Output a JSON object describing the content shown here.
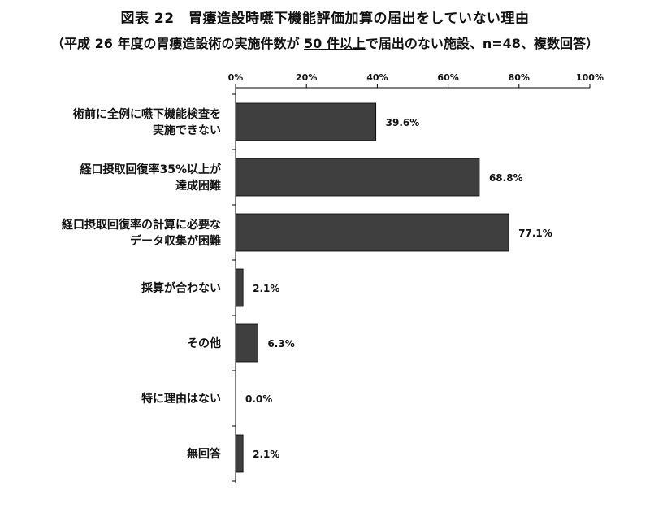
{
  "title": "図表 22　胃瘻造設時嚥下機能評価加算の届出をしていない理由",
  "subtitle": {
    "prefix": "（平成 26 年度の胃瘻造設術の実施件数が ",
    "underlined": "50 件以上",
    "suffix": "で届出のない施設、n=48、複数回答）"
  },
  "colors": {
    "bar": "#3f3f3f",
    "axis": "#000000",
    "text": "#111111"
  },
  "chart_data": {
    "type": "bar",
    "orientation": "horizontal",
    "xlim": [
      0,
      100
    ],
    "x_tick_labels": [
      "0%",
      "20%",
      "40%",
      "60%",
      "80%",
      "100%"
    ],
    "x_ticks": [
      0,
      20,
      40,
      60,
      80,
      100
    ],
    "grid": false,
    "categories": [
      [
        "術前に全例に嚥下機能検査を",
        "実施できない"
      ],
      [
        "経口摂取回復率35%以上が",
        "達成困難"
      ],
      [
        "経口摂取回復率の計算に必要な",
        "データ収集が困難"
      ],
      [
        "採算が合わない"
      ],
      [
        "その他"
      ],
      [
        "特に理由はない"
      ],
      [
        "無回答"
      ]
    ],
    "values": [
      39.6,
      68.8,
      77.1,
      2.1,
      6.3,
      0.0,
      2.1
    ],
    "value_labels": [
      "39.6%",
      "68.8%",
      "77.1%",
      "2.1%",
      "6.3%",
      "0.0%",
      "2.1%"
    ]
  }
}
